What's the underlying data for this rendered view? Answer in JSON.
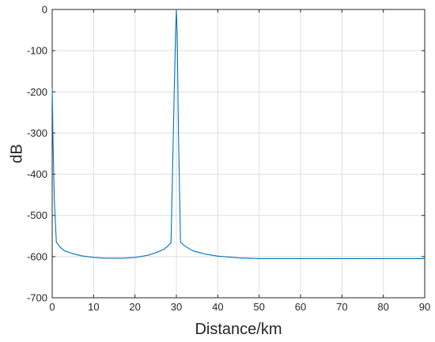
{
  "chart_data": {
    "type": "line",
    "title": "",
    "xlabel": "Distance/km",
    "ylabel": "dB",
    "xlim": [
      0,
      90
    ],
    "ylim": [
      -700,
      0
    ],
    "x_ticks": [
      0,
      10,
      20,
      30,
      40,
      50,
      60,
      70,
      80,
      90
    ],
    "y_ticks": [
      0,
      -100,
      -200,
      -300,
      -400,
      -500,
      -600,
      -700
    ],
    "grid": true,
    "line_color": "#0072BD",
    "series": [
      {
        "x": [
          0,
          0.2,
          0.5,
          1,
          2,
          3,
          5,
          7,
          10,
          13,
          15,
          17,
          20,
          23,
          25,
          27,
          28,
          28.7,
          29,
          29.5,
          29.8,
          30,
          30.2,
          30.5,
          31,
          32,
          34,
          37,
          40,
          45,
          50,
          60,
          70,
          80,
          90
        ],
        "y": [
          -190,
          -320,
          -460,
          -565,
          -578,
          -586,
          -593,
          -598,
          -602,
          -604,
          -604,
          -604,
          -602,
          -597,
          -591,
          -582,
          -574,
          -566,
          -430,
          -190,
          -60,
          0,
          -60,
          -300,
          -565,
          -574,
          -586,
          -594,
          -599,
          -603,
          -605,
          -605,
          -605,
          -605,
          -605
        ]
      }
    ]
  }
}
